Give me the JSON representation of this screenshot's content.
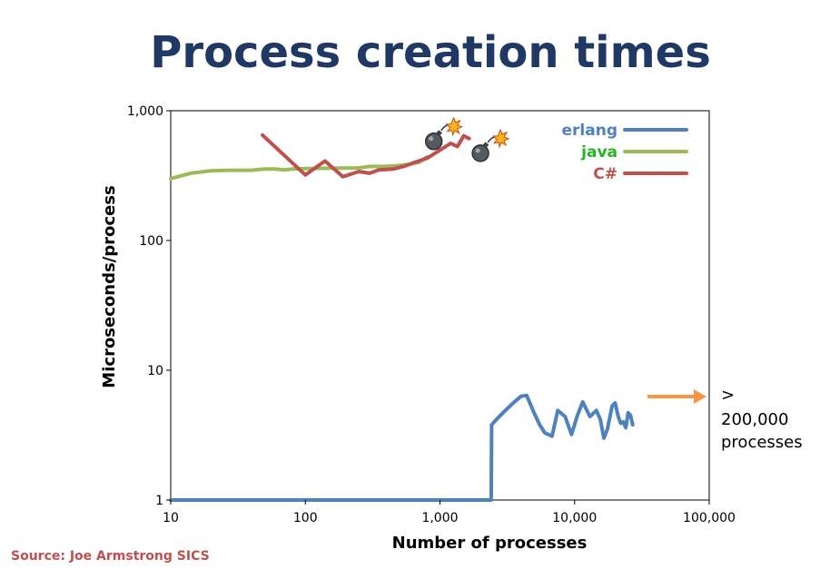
{
  "slide": {
    "title": "Process creation times",
    "source": "Source: Joe Armstrong SICS",
    "source_color": "#c0504d"
  },
  "chart_data": {
    "type": "line",
    "title": "",
    "xlabel": "Number of processes",
    "ylabel": "Microseconds/process",
    "x_scale": "log",
    "y_scale": "log",
    "xlim": [
      10,
      100000
    ],
    "ylim": [
      1,
      1000
    ],
    "x_ticks": [
      10,
      100,
      1000,
      10000,
      100000
    ],
    "x_tick_labels": [
      "10",
      "100",
      "1,000",
      "10,000",
      "100,000"
    ],
    "y_ticks": [
      1,
      10,
      100,
      1000
    ],
    "y_tick_labels": [
      "1",
      "10",
      "100",
      "1,000"
    ],
    "grid": false,
    "legend_position": "top-right",
    "series": [
      {
        "name": "erlang",
        "color": "#4f81bd",
        "points": [
          [
            10,
            1
          ],
          [
            2400,
            1
          ],
          [
            2420,
            3.8
          ],
          [
            2700,
            4.3
          ],
          [
            3000,
            4.8
          ],
          [
            3500,
            5.6
          ],
          [
            4000,
            6.3
          ],
          [
            4400,
            6.4
          ],
          [
            5000,
            4.7
          ],
          [
            5500,
            3.8
          ],
          [
            6000,
            3.3
          ],
          [
            6800,
            3.1
          ],
          [
            7500,
            4.9
          ],
          [
            8500,
            4.4
          ],
          [
            9500,
            3.2
          ],
          [
            10500,
            4.5
          ],
          [
            11500,
            5.7
          ],
          [
            13000,
            4.4
          ],
          [
            14500,
            4.9
          ],
          [
            15500,
            4.2
          ],
          [
            16500,
            3.0
          ],
          [
            17500,
            3.5
          ],
          [
            19000,
            5.3
          ],
          [
            20000,
            5.6
          ],
          [
            21000,
            4.5
          ],
          [
            22000,
            3.9
          ],
          [
            23000,
            4.0
          ],
          [
            24000,
            3.6
          ],
          [
            25000,
            4.7
          ],
          [
            26000,
            4.5
          ],
          [
            27000,
            3.8
          ]
        ]
      },
      {
        "name": "java",
        "color": "#9bbb59",
        "points": [
          [
            10,
            300
          ],
          [
            12,
            315
          ],
          [
            14,
            330
          ],
          [
            16,
            335
          ],
          [
            20,
            345
          ],
          [
            30,
            348
          ],
          [
            40,
            348
          ],
          [
            45,
            352
          ],
          [
            50,
            355
          ],
          [
            60,
            355
          ],
          [
            70,
            350
          ],
          [
            80,
            355
          ],
          [
            100,
            358
          ],
          [
            150,
            360
          ],
          [
            200,
            362
          ],
          [
            250,
            362
          ],
          [
            300,
            372
          ],
          [
            400,
            372
          ],
          [
            500,
            378
          ],
          [
            600,
            388
          ],
          [
            700,
            400
          ],
          [
            800,
            440
          ]
        ]
      },
      {
        "name": "C#",
        "color": "#c0504d",
        "points": [
          [
            48,
            650
          ],
          [
            100,
            320
          ],
          [
            140,
            410
          ],
          [
            190,
            310
          ],
          [
            250,
            340
          ],
          [
            300,
            330
          ],
          [
            350,
            350
          ],
          [
            450,
            355
          ],
          [
            550,
            375
          ],
          [
            650,
            400
          ],
          [
            800,
            430
          ],
          [
            950,
            480
          ],
          [
            1200,
            560
          ],
          [
            1350,
            530
          ],
          [
            1500,
            640
          ],
          [
            1650,
            610
          ]
        ]
      }
    ],
    "annotation": {
      "lines": [
        ">",
        "200,000",
        "processes"
      ],
      "arrow_color": "#f79646"
    },
    "markers": [
      {
        "name": "bomb",
        "x": 900,
        "y": 580
      },
      {
        "name": "bomb",
        "x": 2000,
        "y": 470
      }
    ]
  }
}
